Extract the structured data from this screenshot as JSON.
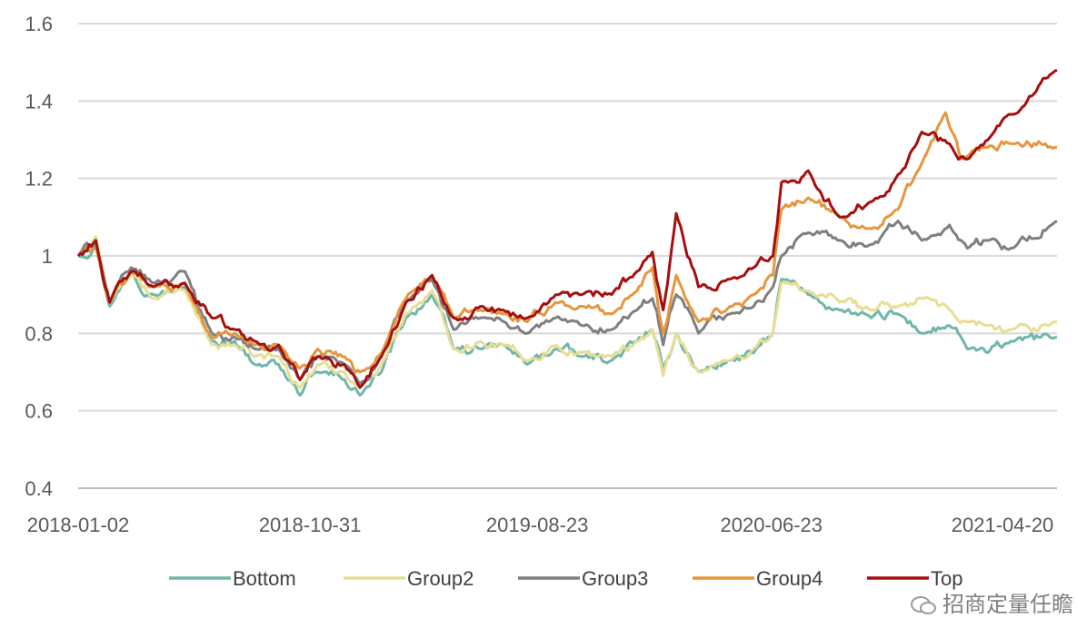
{
  "chart_data": {
    "type": "line",
    "title": "",
    "xlabel": "",
    "ylabel": "",
    "ylim": [
      0.4,
      1.6
    ],
    "yticks": [
      "0.4",
      "0.6",
      "0.8",
      "1",
      "1.2",
      "1.4",
      "1.6"
    ],
    "xticks": [
      "2018-01-02",
      "2018-10-31",
      "2019-08-23",
      "2020-06-23",
      "2021-04-20"
    ],
    "x_range": [
      "2018-01-02",
      "2021-06-30"
    ],
    "grid": "horizontal",
    "legend_position": "bottom",
    "series": [
      {
        "name": "Bottom",
        "color": "#6fb7aa",
        "points": [
          [
            "2018-01-02",
            1.0
          ],
          [
            "2018-01-25",
            1.03
          ],
          [
            "2018-02-12",
            0.87
          ],
          [
            "2018-03-12",
            0.96
          ],
          [
            "2018-04-10",
            0.9
          ],
          [
            "2018-05-21",
            0.92
          ],
          [
            "2018-06-25",
            0.78
          ],
          [
            "2018-07-25",
            0.78
          ],
          [
            "2018-08-20",
            0.72
          ],
          [
            "2018-09-20",
            0.72
          ],
          [
            "2018-10-18",
            0.64
          ],
          [
            "2018-11-10",
            0.7
          ],
          [
            "2018-12-15",
            0.68
          ],
          [
            "2019-01-04",
            0.64
          ],
          [
            "2019-02-01",
            0.7
          ],
          [
            "2019-03-05",
            0.84
          ],
          [
            "2019-04-08",
            0.9
          ],
          [
            "2019-05-06",
            0.76
          ],
          [
            "2019-06-10",
            0.76
          ],
          [
            "2019-07-10",
            0.77
          ],
          [
            "2019-08-10",
            0.72
          ],
          [
            "2019-09-16",
            0.76
          ],
          [
            "2019-10-20",
            0.74
          ],
          [
            "2019-11-28",
            0.73
          ],
          [
            "2019-12-31",
            0.78
          ],
          [
            "2020-01-20",
            0.81
          ],
          [
            "2020-02-03",
            0.7
          ],
          [
            "2020-02-20",
            0.8
          ],
          [
            "2020-03-20",
            0.7
          ],
          [
            "2020-04-30",
            0.73
          ],
          [
            "2020-05-31",
            0.75
          ],
          [
            "2020-06-25",
            0.8
          ],
          [
            "2020-07-06",
            0.94
          ],
          [
            "2020-08-10",
            0.9
          ],
          [
            "2020-09-20",
            0.86
          ],
          [
            "2020-10-31",
            0.84
          ],
          [
            "2020-12-05",
            0.85
          ],
          [
            "2021-01-05",
            0.8
          ],
          [
            "2021-02-10",
            0.82
          ],
          [
            "2021-03-05",
            0.76
          ],
          [
            "2021-04-01",
            0.75
          ],
          [
            "2021-05-01",
            0.78
          ],
          [
            "2021-06-30",
            0.79
          ]
        ]
      },
      {
        "name": "Group2",
        "color": "#e8dd95",
        "points": [
          [
            "2018-01-02",
            1.0
          ],
          [
            "2018-01-25",
            1.05
          ],
          [
            "2018-02-12",
            0.88
          ],
          [
            "2018-03-12",
            0.95
          ],
          [
            "2018-04-10",
            0.89
          ],
          [
            "2018-05-21",
            0.91
          ],
          [
            "2018-06-25",
            0.77
          ],
          [
            "2018-07-25",
            0.77
          ],
          [
            "2018-08-20",
            0.74
          ],
          [
            "2018-09-20",
            0.74
          ],
          [
            "2018-10-18",
            0.66
          ],
          [
            "2018-11-10",
            0.72
          ],
          [
            "2018-12-15",
            0.7
          ],
          [
            "2019-01-04",
            0.66
          ],
          [
            "2019-02-01",
            0.72
          ],
          [
            "2019-03-05",
            0.85
          ],
          [
            "2019-04-08",
            0.91
          ],
          [
            "2019-05-06",
            0.76
          ],
          [
            "2019-06-10",
            0.78
          ],
          [
            "2019-07-10",
            0.77
          ],
          [
            "2019-08-10",
            0.73
          ],
          [
            "2019-09-16",
            0.77
          ],
          [
            "2019-10-20",
            0.75
          ],
          [
            "2019-11-28",
            0.74
          ],
          [
            "2019-12-31",
            0.78
          ],
          [
            "2020-01-20",
            0.81
          ],
          [
            "2020-02-03",
            0.69
          ],
          [
            "2020-02-20",
            0.8
          ],
          [
            "2020-03-20",
            0.7
          ],
          [
            "2020-04-30",
            0.73
          ],
          [
            "2020-05-31",
            0.76
          ],
          [
            "2020-06-25",
            0.8
          ],
          [
            "2020-07-06",
            0.93
          ],
          [
            "2020-08-10",
            0.91
          ],
          [
            "2020-09-20",
            0.88
          ],
          [
            "2020-10-31",
            0.86
          ],
          [
            "2020-12-05",
            0.87
          ],
          [
            "2021-01-05",
            0.89
          ],
          [
            "2021-02-10",
            0.86
          ],
          [
            "2021-03-05",
            0.83
          ],
          [
            "2021-04-01",
            0.82
          ],
          [
            "2021-05-01",
            0.81
          ],
          [
            "2021-06-30",
            0.83
          ]
        ]
      },
      {
        "name": "Group3",
        "color": "#7f7f7f",
        "points": [
          [
            "2018-01-02",
            1.0
          ],
          [
            "2018-01-25",
            1.04
          ],
          [
            "2018-02-12",
            0.88
          ],
          [
            "2018-03-12",
            0.97
          ],
          [
            "2018-04-10",
            0.93
          ],
          [
            "2018-05-21",
            0.96
          ],
          [
            "2018-06-25",
            0.8
          ],
          [
            "2018-07-25",
            0.79
          ],
          [
            "2018-08-20",
            0.76
          ],
          [
            "2018-09-20",
            0.76
          ],
          [
            "2018-10-18",
            0.68
          ],
          [
            "2018-11-10",
            0.74
          ],
          [
            "2018-12-15",
            0.72
          ],
          [
            "2019-01-04",
            0.67
          ],
          [
            "2019-02-01",
            0.74
          ],
          [
            "2019-03-05",
            0.88
          ],
          [
            "2019-04-08",
            0.94
          ],
          [
            "2019-05-06",
            0.81
          ],
          [
            "2019-06-10",
            0.84
          ],
          [
            "2019-07-10",
            0.83
          ],
          [
            "2019-08-10",
            0.8
          ],
          [
            "2019-09-16",
            0.84
          ],
          [
            "2019-10-20",
            0.82
          ],
          [
            "2019-11-28",
            0.81
          ],
          [
            "2019-12-31",
            0.86
          ],
          [
            "2020-01-20",
            0.89
          ],
          [
            "2020-02-03",
            0.77
          ],
          [
            "2020-02-20",
            0.9
          ],
          [
            "2020-03-20",
            0.8
          ],
          [
            "2020-04-30",
            0.85
          ],
          [
            "2020-05-31",
            0.87
          ],
          [
            "2020-06-25",
            0.92
          ],
          [
            "2020-07-06",
            1.0
          ],
          [
            "2020-08-10",
            1.06
          ],
          [
            "2020-09-20",
            1.04
          ],
          [
            "2020-10-31",
            1.03
          ],
          [
            "2020-12-05",
            1.09
          ],
          [
            "2021-01-05",
            1.04
          ],
          [
            "2021-02-10",
            1.08
          ],
          [
            "2021-03-05",
            1.02
          ],
          [
            "2021-04-01",
            1.04
          ],
          [
            "2021-05-01",
            1.02
          ],
          [
            "2021-06-30",
            1.09
          ]
        ]
      },
      {
        "name": "Group4",
        "color": "#e5963f",
        "points": [
          [
            "2018-01-02",
            1.0
          ],
          [
            "2018-01-25",
            1.02
          ],
          [
            "2018-02-12",
            0.88
          ],
          [
            "2018-03-12",
            0.96
          ],
          [
            "2018-04-10",
            0.92
          ],
          [
            "2018-05-21",
            0.93
          ],
          [
            "2018-06-25",
            0.79
          ],
          [
            "2018-07-25",
            0.8
          ],
          [
            "2018-08-20",
            0.77
          ],
          [
            "2018-09-20",
            0.77
          ],
          [
            "2018-10-18",
            0.71
          ],
          [
            "2018-11-10",
            0.76
          ],
          [
            "2018-12-15",
            0.74
          ],
          [
            "2019-01-04",
            0.7
          ],
          [
            "2019-02-01",
            0.75
          ],
          [
            "2019-03-05",
            0.89
          ],
          [
            "2019-04-08",
            0.95
          ],
          [
            "2019-05-06",
            0.84
          ],
          [
            "2019-06-10",
            0.86
          ],
          [
            "2019-07-10",
            0.85
          ],
          [
            "2019-08-10",
            0.83
          ],
          [
            "2019-09-16",
            0.88
          ],
          [
            "2019-10-20",
            0.87
          ],
          [
            "2019-11-28",
            0.85
          ],
          [
            "2019-12-31",
            0.91
          ],
          [
            "2020-01-20",
            0.97
          ],
          [
            "2020-02-03",
            0.8
          ],
          [
            "2020-02-20",
            0.95
          ],
          [
            "2020-03-20",
            0.83
          ],
          [
            "2020-04-30",
            0.87
          ],
          [
            "2020-05-31",
            0.9
          ],
          [
            "2020-06-25",
            0.95
          ],
          [
            "2020-07-06",
            1.12
          ],
          [
            "2020-08-10",
            1.15
          ],
          [
            "2020-09-20",
            1.1
          ],
          [
            "2020-10-31",
            1.07
          ],
          [
            "2020-12-05",
            1.12
          ],
          [
            "2021-01-05",
            1.24
          ],
          [
            "2021-02-05",
            1.37
          ],
          [
            "2021-02-25",
            1.25
          ],
          [
            "2021-04-01",
            1.28
          ],
          [
            "2021-05-01",
            1.29
          ],
          [
            "2021-06-30",
            1.28
          ]
        ]
      },
      {
        "name": "Top",
        "color": "#a50f0f",
        "points": [
          [
            "2018-01-02",
            1.0
          ],
          [
            "2018-01-25",
            1.04
          ],
          [
            "2018-02-12",
            0.88
          ],
          [
            "2018-03-12",
            0.96
          ],
          [
            "2018-04-10",
            0.92
          ],
          [
            "2018-05-21",
            0.93
          ],
          [
            "2018-06-25",
            0.84
          ],
          [
            "2018-07-25",
            0.81
          ],
          [
            "2018-08-20",
            0.78
          ],
          [
            "2018-09-20",
            0.77
          ],
          [
            "2018-10-18",
            0.68
          ],
          [
            "2018-11-10",
            0.74
          ],
          [
            "2018-12-15",
            0.72
          ],
          [
            "2019-01-04",
            0.66
          ],
          [
            "2019-02-01",
            0.74
          ],
          [
            "2019-03-05",
            0.88
          ],
          [
            "2019-04-08",
            0.95
          ],
          [
            "2019-05-06",
            0.84
          ],
          [
            "2019-06-10",
            0.87
          ],
          [
            "2019-07-10",
            0.86
          ],
          [
            "2019-08-10",
            0.84
          ],
          [
            "2019-09-16",
            0.9
          ],
          [
            "2019-10-20",
            0.9
          ],
          [
            "2019-11-28",
            0.9
          ],
          [
            "2019-12-31",
            0.96
          ],
          [
            "2020-01-20",
            1.01
          ],
          [
            "2020-02-03",
            0.86
          ],
          [
            "2020-02-20",
            1.11
          ],
          [
            "2020-03-20",
            0.92
          ],
          [
            "2020-04-30",
            0.94
          ],
          [
            "2020-05-31",
            0.97
          ],
          [
            "2020-06-25",
            1.0
          ],
          [
            "2020-07-06",
            1.19
          ],
          [
            "2020-08-10",
            1.22
          ],
          [
            "2020-09-20",
            1.1
          ],
          [
            "2020-10-31",
            1.14
          ],
          [
            "2020-12-05",
            1.21
          ],
          [
            "2021-01-05",
            1.32
          ],
          [
            "2021-02-10",
            1.29
          ],
          [
            "2021-03-05",
            1.25
          ],
          [
            "2021-04-01",
            1.3
          ],
          [
            "2021-05-10",
            1.37
          ],
          [
            "2021-06-30",
            1.48
          ]
        ]
      }
    ]
  },
  "watermark": {
    "text": "招商定量任瞻"
  }
}
